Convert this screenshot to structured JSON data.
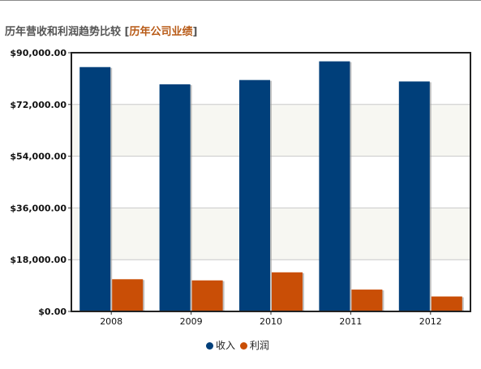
{
  "header": {
    "title": "历年营收和利润趋势比较",
    "bracket_open": " [",
    "link_text": "历年公司业绩",
    "bracket_close": "]"
  },
  "chart_data": {
    "type": "bar",
    "categories": [
      "2008",
      "2009",
      "2010",
      "2011",
      "2012"
    ],
    "series": [
      {
        "name": "收入",
        "color": "#003f7a",
        "values": [
          85000,
          79000,
          80500,
          87000,
          80000
        ]
      },
      {
        "name": "利润",
        "color": "#c94e06",
        "values": [
          11200,
          10800,
          13600,
          7600,
          5200
        ]
      }
    ],
    "ylim": [
      0,
      90000
    ],
    "yticks": [
      0,
      18000,
      36000,
      54000,
      72000,
      90000
    ],
    "ytick_labels": [
      "$0.00",
      "$18,000.00",
      "$36,000.00",
      "$54,000.00",
      "$72,000.00",
      "$90,000.00"
    ],
    "grid": true,
    "legend_position": "bottom-center"
  }
}
